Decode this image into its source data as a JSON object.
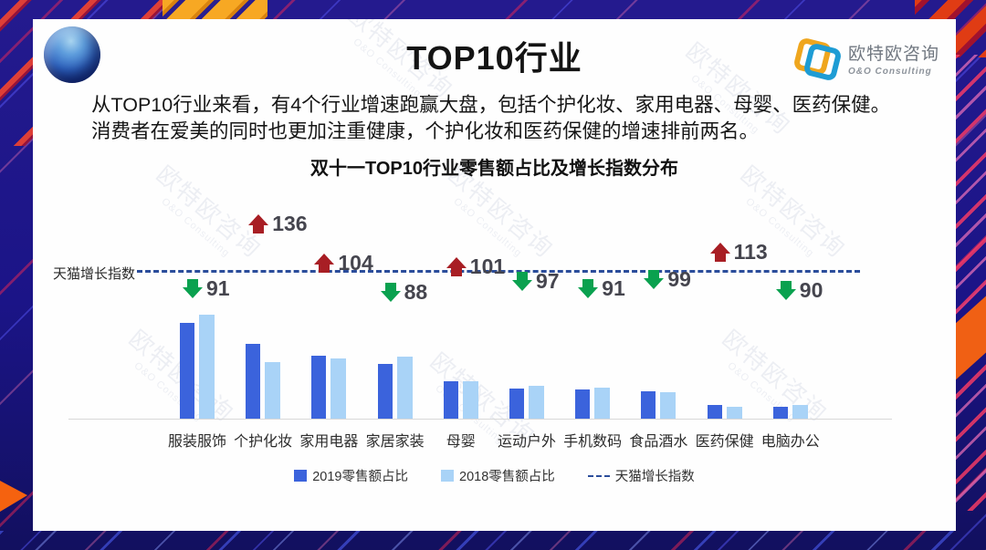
{
  "page": {
    "title": "TOP10行业",
    "description": "从TOP10行业来看，有4个行业增速跑赢大盘，包括个护化妆、家用电器、母婴、医药保健。消费者在爱美的同时也更加注重健康，个护化妆和医药保健的增速排前两名。",
    "logo": {
      "name": "欧特欧咨询",
      "sub": "O&O Consulting"
    },
    "watermark": "欧特欧咨询",
    "watermark_sub": "O&O Consulting"
  },
  "chart_data": {
    "type": "bar",
    "title": "双十一TOP10行业零售额占比及增长指数分布",
    "categories": [
      "服装服饰",
      "个护化妆",
      "家用电器",
      "家居家装",
      "母婴",
      "运动户外",
      "手机数码",
      "食品酒水",
      "医药保健",
      "电脑办公"
    ],
    "series": [
      {
        "name": "2019零售额占比",
        "values": [
          20.2,
          15.8,
          13.3,
          11.5,
          7.9,
          6.3,
          6.2,
          5.8,
          2.9,
          2.5
        ]
      },
      {
        "name": "2018零售额占比",
        "values": [
          21.9,
          11.9,
          12.7,
          13.1,
          7.9,
          6.9,
          6.5,
          5.6,
          2.5,
          2.9
        ]
      }
    ],
    "growth_index": {
      "name": "天猫增长指数",
      "baseline": 100,
      "values": [
        91,
        136,
        104,
        88,
        101,
        97,
        91,
        99,
        113,
        90
      ],
      "directions": [
        "down",
        "up",
        "up",
        "down",
        "up",
        "down",
        "down",
        "down",
        "up",
        "down"
      ]
    },
    "legend": [
      "2019零售额占比",
      "2018零售额占比",
      "天猫增长指数"
    ],
    "legend_position": "bottom",
    "grid": false,
    "ylim": [
      0,
      25
    ],
    "note": "values are estimated share percentages read from bar heights; no value axis shown",
    "colors": {
      "bar_2019": "#3b63dc",
      "bar_2018": "#a9d3f7",
      "up_arrow": "#a81e24",
      "down_arrow": "#0aa14f",
      "dashed_line": "#2b4d9b",
      "value_text": "#45454e"
    }
  }
}
